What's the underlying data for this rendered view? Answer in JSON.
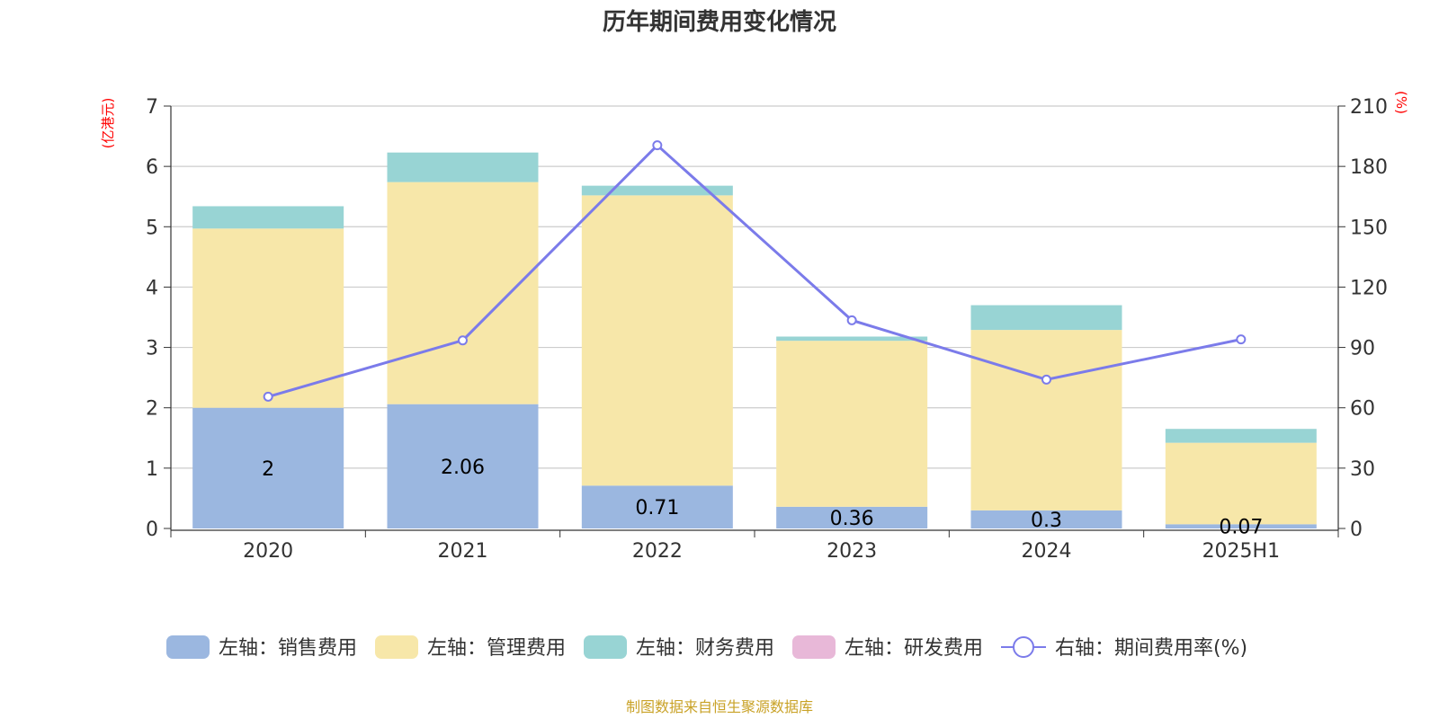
{
  "chart_data": {
    "type": "bar",
    "title": "历年期间费用变化情况",
    "categories": [
      "2020",
      "2021",
      "2022",
      "2023",
      "2024",
      "2025H1"
    ],
    "left_axis": {
      "unit": "(亿港元)",
      "ylim": [
        0,
        7
      ],
      "ticks": [
        "0",
        "1",
        "2",
        "3",
        "4",
        "5",
        "6",
        "7"
      ]
    },
    "right_axis": {
      "unit": "(%)",
      "ylim": [
        0,
        210
      ],
      "ticks": [
        "0",
        "30",
        "60",
        "90",
        "120",
        "150",
        "180",
        "210"
      ]
    },
    "series": [
      {
        "name": "左轴：销售费用",
        "axis": "left",
        "stack": true,
        "color": "#9bb7e0",
        "values": [
          2.0,
          2.06,
          0.71,
          0.36,
          0.3,
          0.07
        ],
        "labels": [
          "2",
          "2.06",
          "0.71",
          "0.36",
          "0.3",
          "0.07"
        ]
      },
      {
        "name": "左轴：管理费用",
        "axis": "left",
        "stack": true,
        "color": "#f7e7a9",
        "values": [
          2.97,
          3.68,
          4.81,
          2.75,
          2.99,
          1.35
        ]
      },
      {
        "name": "左轴：财务费用",
        "axis": "left",
        "stack": true,
        "color": "#98d4d4",
        "values": [
          0.37,
          0.49,
          0.16,
          0.07,
          0.41,
          0.23
        ]
      },
      {
        "name": "左轴：研发费用",
        "axis": "left",
        "stack": true,
        "color": "#e8b8d8",
        "values": [
          0,
          0,
          0,
          0,
          0,
          0
        ]
      },
      {
        "name": "右轴：期间费用率(%)",
        "axis": "right",
        "type": "line",
        "color": "#7b7bea",
        "values": [
          65.5,
          93.5,
          190.5,
          103.5,
          74,
          94
        ]
      }
    ],
    "source": "制图数据来自恒生聚源数据库"
  }
}
